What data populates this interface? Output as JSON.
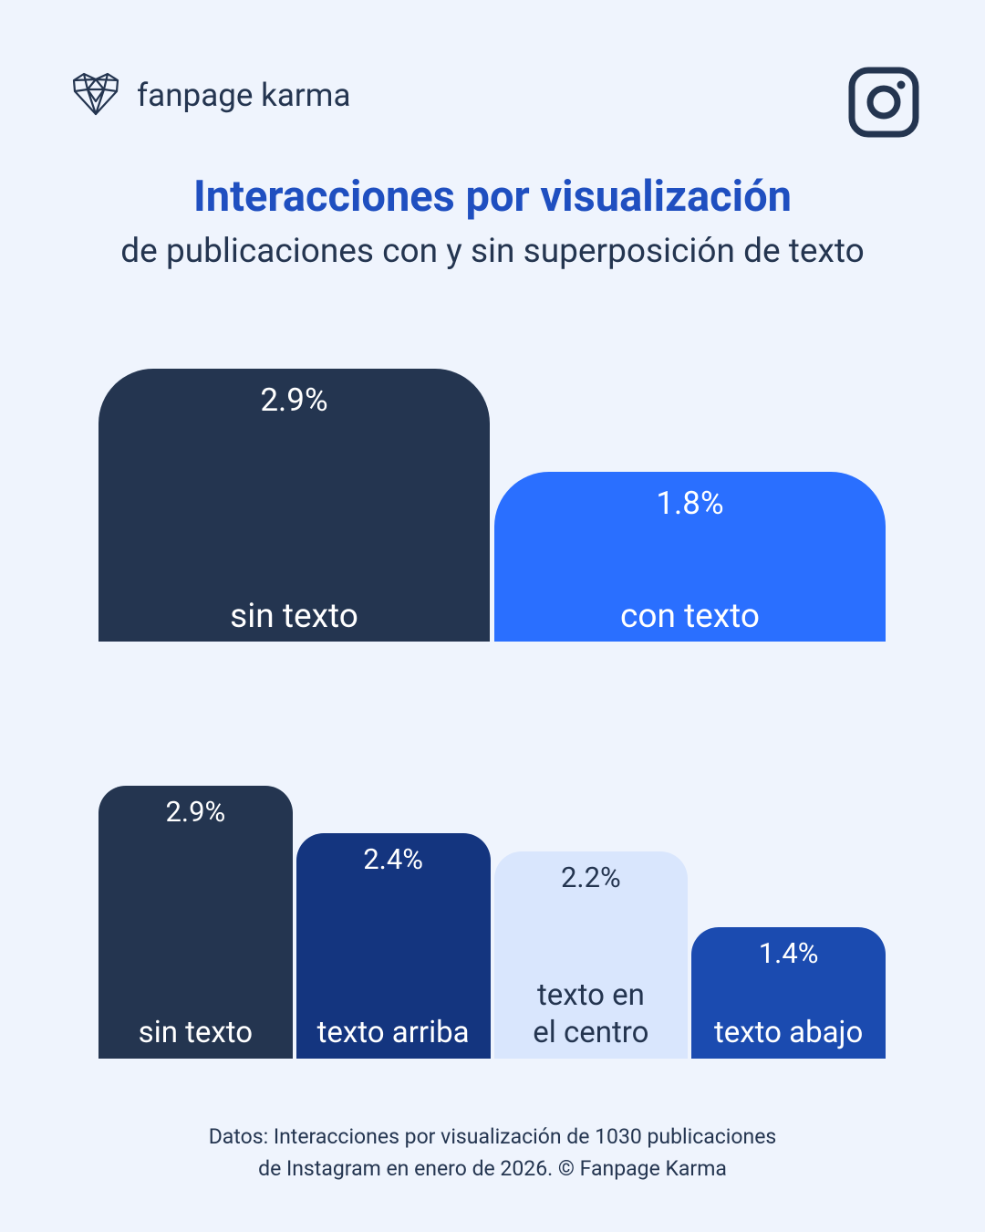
{
  "brand": "fanpage karma",
  "title": "Interacciones por visualización",
  "subtitle": "de publicaciones con y sin superposición de texto",
  "chart_data": [
    {
      "type": "bar",
      "categories": [
        "sin texto",
        "con texto"
      ],
      "values": [
        2.9,
        1.8
      ],
      "value_labels": [
        "2.9%",
        "1.8%"
      ],
      "colors": [
        "#243550",
        "#2a6fff"
      ]
    },
    {
      "type": "bar",
      "categories": [
        "sin texto",
        "texto arriba",
        "texto en el centro",
        "texto abajo"
      ],
      "values": [
        2.9,
        2.4,
        2.2,
        1.4
      ],
      "value_labels": [
        "2.9%",
        "2.4%",
        "2.2%",
        "1.4%"
      ],
      "colors": [
        "#243550",
        "#14357f",
        "#d9e6fd",
        "#1b4bb0"
      ]
    }
  ],
  "footnote": "Datos: Interacciones por visualización de 1030 publicaciones de Instagram en enero de 2026. © Fanpage Karma"
}
